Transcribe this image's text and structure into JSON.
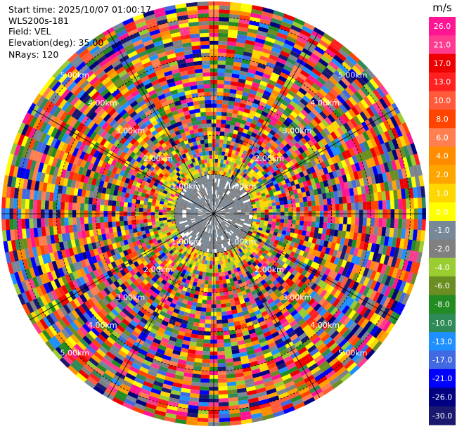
{
  "header": {
    "start_time": "Start time: 2025/10/07 01:00:17",
    "instrument": "WLS200s-181",
    "field": "Field: VEL",
    "elevation": "Elevation(deg): 35.00",
    "nrays": "NRays: 120"
  },
  "chart_data": {
    "type": "heatmap",
    "projection": "polar-ppi",
    "field": "VEL",
    "units": "m/s",
    "n_rays": 120,
    "range_rings_km": [
      1,
      2,
      3,
      4,
      5
    ],
    "range_ring_labels": [
      "1.00km",
      "2.00km",
      "3.00km",
      "4.00km",
      "5.00km"
    ],
    "max_range_km": 5.4,
    "radial_lines": 12,
    "colorbar": {
      "label": "m/s",
      "levels": [
        26.0,
        21.0,
        17.0,
        13.0,
        10.0,
        8.0,
        6.0,
        4.0,
        2.0,
        1.0,
        0.0,
        -1.0,
        -2.0,
        -4.0,
        -6.0,
        -8.0,
        -10.0,
        -13.0,
        -17.0,
        -21.0,
        -26.0,
        -30.0
      ],
      "tick_labels": [
        "26.0",
        "21.0",
        "17.0",
        "13.0",
        "10.0",
        "8.0",
        "6.0",
        "4.0",
        "2.0",
        "1.0",
        "0.0",
        "-1.0",
        "-2.0",
        "-4.0",
        "-6.0",
        "-8.0",
        "-10.0",
        "-13.0",
        "-17.0",
        "-21.0",
        "-26.0",
        "-30.0"
      ],
      "colors": [
        "#ff1493",
        "#ff3b8f",
        "#ee0000",
        "#ff2020",
        "#ff5a3a",
        "#ff4500",
        "#ff7f50",
        "#ff8c00",
        "#ffa500",
        "#ffd700",
        "#ffff00",
        "#778899",
        "#808080",
        "#9acd32",
        "#6b8e23",
        "#228b22",
        "#2e8b57",
        "#1e90ff",
        "#4169e1",
        "#0000ff",
        "#000080",
        "#191970"
      ]
    },
    "inner_region_km": 1.0,
    "inner_region_dominant": [
      "#778899",
      "#808080"
    ],
    "ring_1_2km_dominant": [
      "#ffd700",
      "#9acd32"
    ]
  }
}
